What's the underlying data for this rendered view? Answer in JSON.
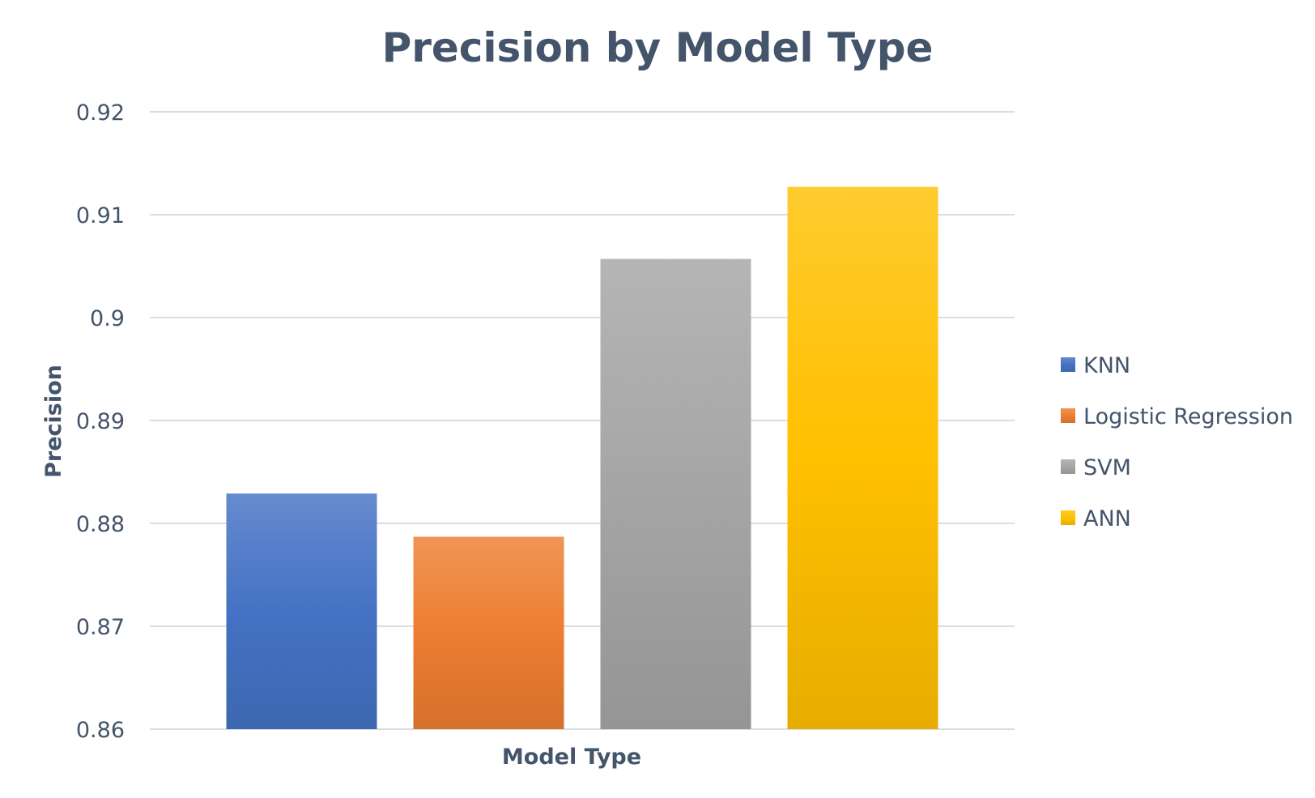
{
  "chart_data": {
    "type": "bar",
    "title": "Precision by Model Type",
    "xlabel": "Model Type",
    "ylabel": "Precision",
    "ylim": [
      0.86,
      0.92
    ],
    "yticks": [
      "0.86",
      "0.87",
      "0.88",
      "0.89",
      "0.9",
      "0.91",
      "0.92"
    ],
    "grid": true,
    "legend_position": "right",
    "categories": [
      ""
    ],
    "series": [
      {
        "name": "KNN",
        "values": [
          0.8829
        ],
        "color": "#4472c4"
      },
      {
        "name": "Logistic Regression",
        "values": [
          0.8787
        ],
        "color": "#ed7d31"
      },
      {
        "name": "SVM",
        "values": [
          0.9057
        ],
        "color": "#a5a5a5"
      },
      {
        "name": "ANN",
        "values": [
          0.9127
        ],
        "color": "#ffc000"
      }
    ]
  }
}
